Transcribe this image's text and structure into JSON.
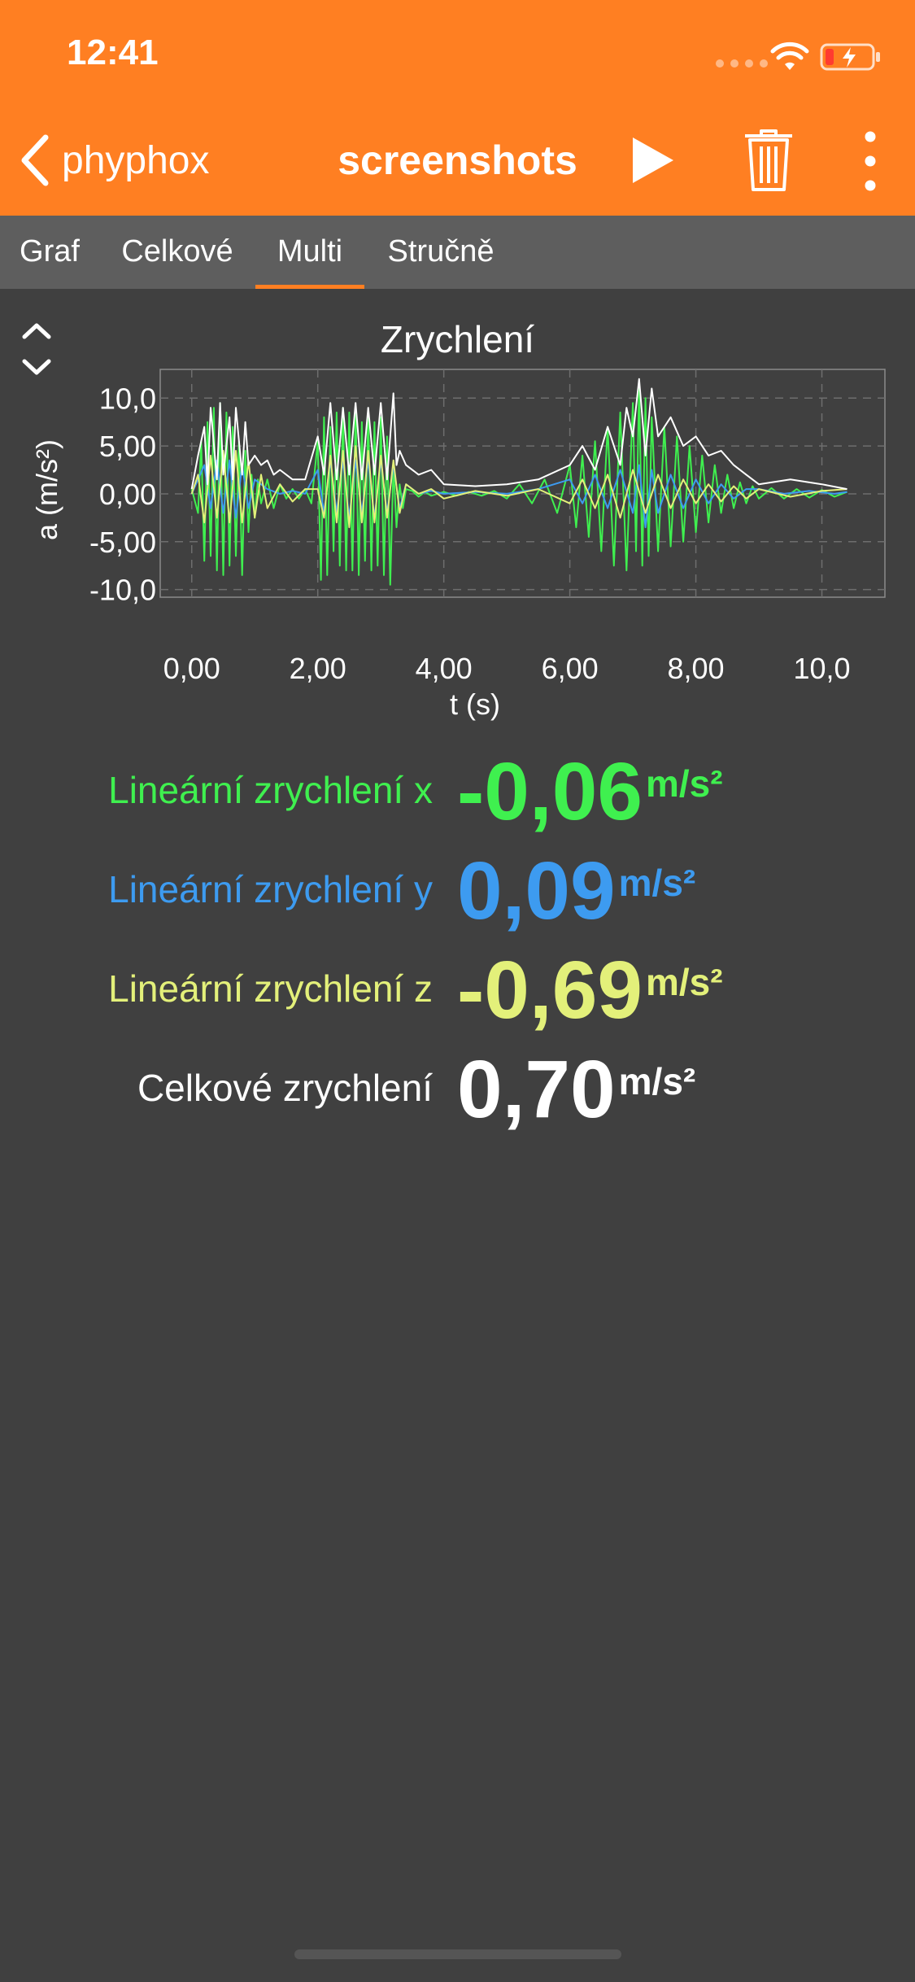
{
  "status_bar": {
    "time": "12:41"
  },
  "nav": {
    "back_label": "phyphox",
    "title": "screenshots"
  },
  "tabs": [
    {
      "label": "Graf",
      "active": false
    },
    {
      "label": "Celkové",
      "active": false
    },
    {
      "label": "Multi",
      "active": true
    },
    {
      "label": "Stručně",
      "active": false
    }
  ],
  "graph": {
    "title": "Zrychlení"
  },
  "chart_data": {
    "type": "line",
    "title": "Zrychlení",
    "xlabel": "t (s)",
    "ylabel": "a (m/s²)",
    "xlim": [
      -0.5,
      11.0
    ],
    "ylim": [
      -10.8,
      13.0
    ],
    "xticks": [
      0,
      2,
      4,
      6,
      8,
      10
    ],
    "xtick_labels": [
      "0,00",
      "2,00",
      "4,00",
      "6,00",
      "8,00",
      "10,0"
    ],
    "yticks": [
      10,
      5,
      0,
      -5,
      -10
    ],
    "ytick_labels": [
      "10,0",
      "5,00",
      "0,00",
      "-5,00",
      "-10,0"
    ],
    "grid": true,
    "series": [
      {
        "name": "Lineární zrychlení x",
        "color": "#3ff04f",
        "x": [
          0.0,
          0.1,
          0.15,
          0.2,
          0.25,
          0.3,
          0.35,
          0.4,
          0.45,
          0.5,
          0.55,
          0.6,
          0.65,
          0.7,
          0.75,
          0.8,
          0.85,
          0.9,
          0.95,
          1.0,
          1.05,
          1.1,
          1.2,
          1.3,
          1.4,
          1.5,
          1.6,
          1.7,
          1.8,
          1.9,
          2.0,
          2.05,
          2.1,
          2.15,
          2.2,
          2.25,
          2.3,
          2.35,
          2.4,
          2.45,
          2.5,
          2.55,
          2.6,
          2.65,
          2.7,
          2.75,
          2.8,
          2.85,
          2.9,
          2.95,
          3.0,
          3.05,
          3.1,
          3.15,
          3.2,
          3.25,
          3.3,
          3.35,
          3.4,
          3.5,
          3.6,
          3.7,
          3.8,
          4.0,
          4.2,
          4.4,
          4.6,
          4.8,
          5.0,
          5.2,
          5.4,
          5.6,
          5.8,
          6.0,
          6.1,
          6.2,
          6.3,
          6.4,
          6.5,
          6.6,
          6.7,
          6.8,
          6.9,
          7.0,
          7.05,
          7.1,
          7.15,
          7.2,
          7.25,
          7.3,
          7.4,
          7.5,
          7.6,
          7.7,
          7.8,
          7.9,
          8.0,
          8.1,
          8.2,
          8.3,
          8.4,
          8.5,
          8.6,
          8.7,
          8.8,
          8.9,
          9.0,
          9.2,
          9.4,
          9.6,
          9.8,
          10.0,
          10.2,
          10.4
        ],
        "y": [
          0.5,
          -2.0,
          5.5,
          -7.0,
          7.5,
          -6.5,
          9.0,
          -8.0,
          9.5,
          -8.5,
          8.5,
          -7.5,
          7.0,
          -6.5,
          5.5,
          -8.5,
          4.5,
          -4.0,
          2.0,
          -2.5,
          1.5,
          -1.0,
          1.5,
          -1.5,
          1.0,
          -0.5,
          0.5,
          -0.5,
          0.5,
          -1.0,
          5.5,
          -9.0,
          8.0,
          -8.5,
          7.0,
          -6.0,
          8.5,
          -7.5,
          9.0,
          -8.0,
          8.5,
          -8.0,
          9.0,
          -8.5,
          7.5,
          -7.0,
          8.5,
          -8.0,
          7.5,
          -7.5,
          8.0,
          -8.5,
          6.0,
          -9.5,
          3.0,
          -3.5,
          1.0,
          -1.5,
          0.5,
          0.3,
          -0.3,
          0.2,
          -0.2,
          0.2,
          -0.2,
          0.2,
          -0.2,
          0.3,
          -0.5,
          1.0,
          -1.0,
          1.5,
          -2.0,
          3.0,
          -3.5,
          4.0,
          -4.5,
          5.5,
          -6.0,
          7.0,
          -7.5,
          8.5,
          -8.0,
          9.5,
          -6.0,
          11.5,
          -7.5,
          10.0,
          -6.5,
          8.0,
          -6.0,
          7.0,
          -5.5,
          6.0,
          -5.0,
          5.0,
          -4.0,
          4.0,
          -3.0,
          3.0,
          -2.0,
          2.0,
          -1.5,
          1.2,
          -1.0,
          0.8,
          -0.5,
          0.6,
          -0.5,
          0.5,
          -0.4,
          0.4,
          -0.3,
          0.2
        ]
      },
      {
        "name": "Lineární zrychlení y",
        "color": "#3d9bf0",
        "x": [
          0.0,
          0.1,
          0.2,
          0.3,
          0.4,
          0.5,
          0.6,
          0.7,
          0.8,
          0.9,
          1.0,
          1.2,
          1.4,
          1.6,
          1.8,
          2.0,
          2.1,
          2.2,
          2.3,
          2.4,
          2.5,
          2.6,
          2.7,
          2.8,
          2.9,
          3.0,
          3.1,
          3.2,
          3.3,
          3.4,
          3.6,
          3.8,
          4.0,
          4.5,
          5.0,
          5.5,
          6.0,
          6.2,
          6.4,
          6.6,
          6.8,
          7.0,
          7.1,
          7.2,
          7.3,
          7.4,
          7.6,
          7.8,
          8.0,
          8.2,
          8.4,
          8.6,
          8.8,
          9.0,
          9.4,
          9.8,
          10.2,
          10.4
        ],
        "y": [
          0.0,
          1.5,
          3.0,
          -1.5,
          3.5,
          -2.0,
          3.5,
          -2.5,
          3.0,
          -1.5,
          1.5,
          0.5,
          0.0,
          0.3,
          0.0,
          2.5,
          -2.0,
          3.5,
          -2.0,
          3.5,
          -2.5,
          3.5,
          -2.0,
          3.5,
          -2.5,
          3.5,
          -2.0,
          3.0,
          -1.5,
          1.0,
          0.0,
          0.3,
          0.0,
          0.2,
          0.0,
          0.5,
          1.5,
          -1.0,
          2.0,
          -1.5,
          2.5,
          -2.0,
          3.0,
          -3.5,
          2.5,
          -2.0,
          2.0,
          -1.5,
          1.5,
          -1.0,
          1.0,
          -0.5,
          0.5,
          0.5,
          0.0,
          0.3,
          0.0,
          0.2
        ]
      },
      {
        "name": "Lineární zrychlení z",
        "color": "#e3f07a",
        "x": [
          0.0,
          0.1,
          0.2,
          0.3,
          0.4,
          0.5,
          0.6,
          0.7,
          0.8,
          0.9,
          1.0,
          1.1,
          1.2,
          1.4,
          1.6,
          1.8,
          2.0,
          2.1,
          2.2,
          2.3,
          2.4,
          2.5,
          2.6,
          2.7,
          2.8,
          2.9,
          3.0,
          3.1,
          3.2,
          3.3,
          3.4,
          3.6,
          3.8,
          4.0,
          4.5,
          5.0,
          5.5,
          6.0,
          6.2,
          6.4,
          6.6,
          6.8,
          7.0,
          7.2,
          7.4,
          7.6,
          7.8,
          8.0,
          8.2,
          8.4,
          8.6,
          8.8,
          9.0,
          9.5,
          10.0,
          10.4
        ],
        "y": [
          0.0,
          2.0,
          -3.0,
          4.0,
          -2.5,
          4.5,
          -3.0,
          4.5,
          -3.0,
          3.5,
          -2.5,
          2.0,
          -1.5,
          1.0,
          -0.8,
          0.5,
          0.5,
          -2.5,
          4.0,
          -3.0,
          4.5,
          -3.5,
          5.0,
          -3.0,
          4.5,
          -3.0,
          4.0,
          -2.5,
          3.5,
          -2.0,
          1.0,
          0.0,
          0.5,
          -0.5,
          0.3,
          -0.2,
          0.5,
          -1.0,
          1.5,
          -1.5,
          2.0,
          -2.5,
          2.5,
          -2.0,
          2.0,
          -1.5,
          1.5,
          -1.0,
          1.0,
          -0.8,
          0.8,
          -0.5,
          0.5,
          -0.3,
          0.3,
          0.5
        ]
      },
      {
        "name": "Celkové zrychlení",
        "color": "#ffffff",
        "x": [
          0.0,
          0.1,
          0.2,
          0.25,
          0.3,
          0.4,
          0.45,
          0.5,
          0.6,
          0.65,
          0.7,
          0.8,
          0.85,
          0.9,
          1.0,
          1.1,
          1.2,
          1.3,
          1.4,
          1.6,
          1.8,
          2.0,
          2.1,
          2.2,
          2.3,
          2.4,
          2.5,
          2.6,
          2.7,
          2.8,
          2.9,
          3.0,
          3.1,
          3.2,
          3.25,
          3.3,
          3.4,
          3.6,
          3.8,
          4.0,
          4.5,
          5.0,
          5.5,
          6.0,
          6.2,
          6.4,
          6.6,
          6.8,
          6.9,
          7.0,
          7.1,
          7.2,
          7.3,
          7.4,
          7.6,
          7.8,
          8.0,
          8.2,
          8.4,
          8.6,
          8.8,
          9.0,
          9.5,
          10.0,
          10.4
        ],
        "y": [
          0.5,
          4.0,
          7.0,
          1.0,
          9.0,
          1.5,
          9.5,
          2.0,
          8.0,
          1.5,
          9.0,
          2.0,
          7.5,
          3.0,
          4.0,
          3.0,
          3.5,
          2.0,
          2.5,
          1.5,
          1.5,
          6.0,
          2.0,
          9.5,
          1.5,
          9.0,
          2.0,
          9.5,
          1.5,
          9.0,
          2.0,
          9.5,
          1.5,
          10.5,
          3.0,
          4.5,
          3.0,
          2.0,
          2.5,
          1.0,
          0.8,
          1.0,
          1.5,
          3.0,
          5.0,
          2.5,
          7.0,
          3.0,
          9.0,
          6.0,
          12.0,
          4.0,
          11.0,
          6.0,
          8.0,
          5.0,
          6.0,
          4.0,
          4.5,
          3.0,
          2.0,
          1.0,
          1.5,
          1.0,
          0.5
        ]
      }
    ]
  },
  "values": [
    {
      "label": "Lineární zrychlení x",
      "value": "-0,06",
      "unit": "m/s²",
      "color": "#3ff04f"
    },
    {
      "label": "Lineární zrychlení y",
      "value": "0,09",
      "unit": "m/s²",
      "color": "#3d9bf0"
    },
    {
      "label": "Lineární zrychlení z",
      "value": "-0,69",
      "unit": "m/s²",
      "color": "#e3f07a"
    },
    {
      "label": "Celkové zrychlení",
      "value": "0,70",
      "unit": "m/s²",
      "color": "#ffffff"
    }
  ],
  "icons": {
    "back": "chevron-left-icon",
    "play": "play-icon",
    "delete": "trash-icon",
    "more": "more-vertical-icon",
    "graph_toggle": "expand-collapse-icon"
  }
}
